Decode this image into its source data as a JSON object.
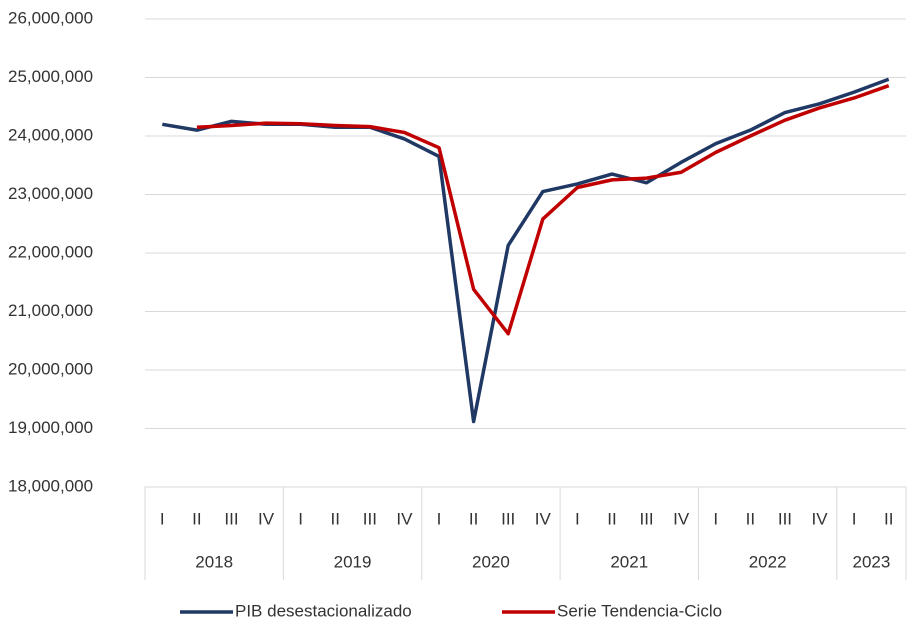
{
  "chart_data": {
    "type": "line",
    "categories": [
      [
        "2018",
        "I"
      ],
      [
        "2018",
        "II"
      ],
      [
        "2018",
        "III"
      ],
      [
        "2018",
        "IV"
      ],
      [
        "2019",
        "I"
      ],
      [
        "2019",
        "II"
      ],
      [
        "2019",
        "III"
      ],
      [
        "2019",
        "IV"
      ],
      [
        "2020",
        "I"
      ],
      [
        "2020",
        "II"
      ],
      [
        "2020",
        "III"
      ],
      [
        "2020",
        "IV"
      ],
      [
        "2021",
        "I"
      ],
      [
        "2021",
        "II"
      ],
      [
        "2021",
        "III"
      ],
      [
        "2021",
        "IV"
      ],
      [
        "2022",
        "I"
      ],
      [
        "2022",
        "II"
      ],
      [
        "2022",
        "III"
      ],
      [
        "2022",
        "IV"
      ],
      [
        "2023",
        "I"
      ],
      [
        "2023",
        "II"
      ]
    ],
    "series": [
      {
        "name": "PIB desestacionalizado",
        "color": "#1f3864",
        "values": [
          24200000,
          24100000,
          24250000,
          24200000,
          24200000,
          24150000,
          24150000,
          23950000,
          23650000,
          19120000,
          22130000,
          23050000,
          23180000,
          23350000,
          23200000,
          23550000,
          23870000,
          24100000,
          24400000,
          24550000,
          24750000,
          24970000
        ]
      },
      {
        "name": "Serie Tendencia-Ciclo",
        "color": "#c00000",
        "values": [
          null,
          24150000,
          24180000,
          24220000,
          24210000,
          24180000,
          24160000,
          24060000,
          23800000,
          21380000,
          20620000,
          22580000,
          23120000,
          23250000,
          23280000,
          23380000,
          23720000,
          24000000,
          24270000,
          24480000,
          24650000,
          24860000
        ]
      }
    ],
    "ylim": [
      18000000,
      26000000
    ],
    "yticks": [
      {
        "value": 18000000,
        "label": "18,000,000"
      },
      {
        "value": 19000000,
        "label": "19,000,000"
      },
      {
        "value": 20000000,
        "label": "20,000,000"
      },
      {
        "value": 21000000,
        "label": "21,000,000"
      },
      {
        "value": 22000000,
        "label": "22,000,000"
      },
      {
        "value": 23000000,
        "label": "23,000,000"
      },
      {
        "value": 24000000,
        "label": "24,000,000"
      },
      {
        "value": 25000000,
        "label": "25,000,000"
      },
      {
        "value": 26000000,
        "label": "26,000,000"
      }
    ],
    "grid": true,
    "legend": "bottom"
  }
}
